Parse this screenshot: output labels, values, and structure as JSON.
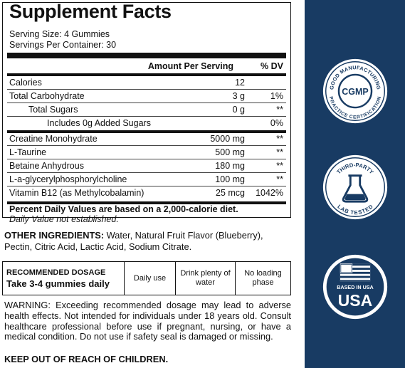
{
  "facts": {
    "title": "Supplement Facts",
    "serving_size": "Serving Size: 4 Gummies",
    "servings_per_container": "Servings Per Container: 30",
    "amount_header": "Amount Per Serving",
    "dv_header": "% DV",
    "rows": [
      {
        "name": "Calories",
        "amount": "12",
        "dv": ""
      },
      {
        "name": "Total Carbohydrate",
        "amount": "3 g",
        "dv": "1%"
      },
      {
        "name": "Total Sugars",
        "amount": "0 g",
        "dv": "**"
      },
      {
        "name": "Includes 0g Added Sugars",
        "amount": "",
        "dv": "0%"
      },
      {
        "name": "Creatine Monohydrate",
        "amount": "5000 mg",
        "dv": "**"
      },
      {
        "name": "L-Taurine",
        "amount": "500 mg",
        "dv": "**"
      },
      {
        "name": "Betaine Anhydrous",
        "amount": "180 mg",
        "dv": "**"
      },
      {
        "name": "L-a-glycerylphosphorylcholine",
        "amount": "100 mg",
        "dv": "**"
      },
      {
        "name": "Vitamin B12 (as Methylcobalamin)",
        "amount": "25 mcg",
        "dv": "1042%"
      }
    ],
    "footnote_1": "Percent Daily Values are based on a 2,000-calorie diet.",
    "footnote_2": "Daily Value not established."
  },
  "other_ingredients": {
    "label": "OTHER INGREDIENTS:",
    "text": " Water, Natural Fruit Flavor (Blueberry), Pectin, Citric Acid, Lactic Acid, Sodium Citrate."
  },
  "dosage": {
    "label": "RECOMMENDED DOSAGE",
    "value": "Take 3-4 gummies daily",
    "cells": [
      "Daily use",
      "Drink plenty of water",
      "No loading phase"
    ]
  },
  "warning": "WARNING: Exceeding recommended dosage may lead to adverse health effects. Not intended for individuals under 18 years old. Consult healthcare professional before use if pregnant, nursing, or have a medical condition. Do not use if safety seal is damaged or missing.",
  "keep_out": "KEEP OUT OF REACH OF CHILDREN.",
  "badges": {
    "cgmp": {
      "center": "CGMP",
      "top_arc": "GOOD MANUFACTURING",
      "bottom_arc": "PRACTICE CERTIFICATION",
      "icon": "cgmp-badge-icon"
    },
    "lab": {
      "top_arc": "THIRD-PARTY",
      "bottom_arc": "LAB TESTED",
      "icon": "flask-icon"
    },
    "usa": {
      "line1": "BASED IN USA",
      "line2": "USA",
      "icon": "us-flag-icon"
    }
  },
  "colors": {
    "panel": "#183b63",
    "badge_fill": "#ffffff",
    "badge_ink": "#183b63"
  }
}
